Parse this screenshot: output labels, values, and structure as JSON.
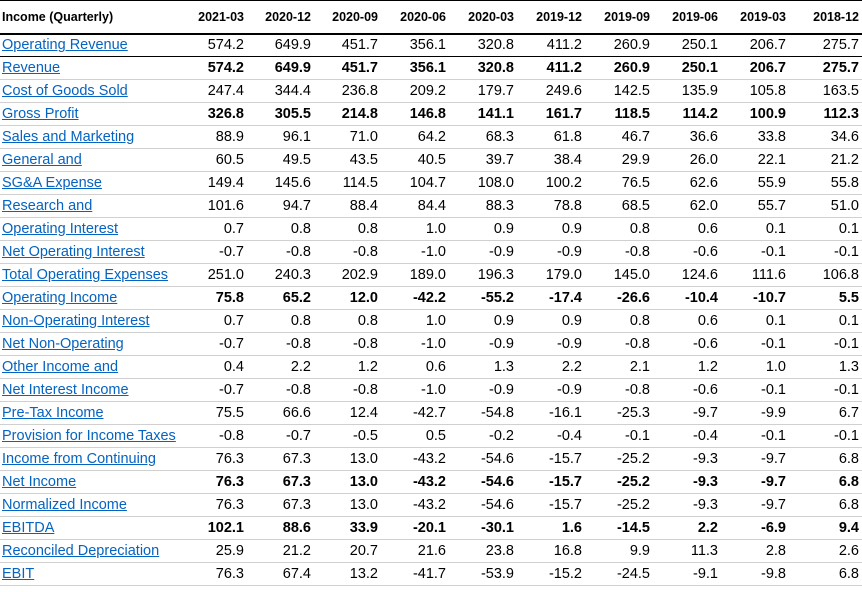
{
  "table": {
    "title": "Income (Quarterly)",
    "periods": [
      "2021-03",
      "2020-12",
      "2020-09",
      "2020-06",
      "2020-03",
      "2019-12",
      "2019-09",
      "2019-06",
      "2019-03",
      "2018-12"
    ],
    "rows": [
      {
        "label": "Operating Revenue",
        "bold": false,
        "values": [
          "574.2",
          "649.9",
          "451.7",
          "356.1",
          "320.8",
          "411.2",
          "260.9",
          "250.1",
          "206.7",
          "275.7"
        ]
      },
      {
        "label": "Revenue",
        "bold": true,
        "values": [
          "574.2",
          "649.9",
          "451.7",
          "356.1",
          "320.8",
          "411.2",
          "260.9",
          "250.1",
          "206.7",
          "275.7"
        ]
      },
      {
        "label": "Cost of Goods Sold",
        "bold": false,
        "values": [
          "247.4",
          "344.4",
          "236.8",
          "209.2",
          "179.7",
          "249.6",
          "142.5",
          "135.9",
          "105.8",
          "163.5"
        ]
      },
      {
        "label": "Gross Profit",
        "bold": true,
        "values": [
          "326.8",
          "305.5",
          "214.8",
          "146.8",
          "141.1",
          "161.7",
          "118.5",
          "114.2",
          "100.9",
          "112.3"
        ]
      },
      {
        "label": "Sales and Marketing",
        "bold": false,
        "values": [
          "88.9",
          "96.1",
          "71.0",
          "64.2",
          "68.3",
          "61.8",
          "46.7",
          "36.6",
          "33.8",
          "34.6"
        ]
      },
      {
        "label": "General and",
        "bold": false,
        "values": [
          "60.5",
          "49.5",
          "43.5",
          "40.5",
          "39.7",
          "38.4",
          "29.9",
          "26.0",
          "22.1",
          "21.2"
        ]
      },
      {
        "label": "SG&A Expense",
        "bold": false,
        "values": [
          "149.4",
          "145.6",
          "114.5",
          "104.7",
          "108.0",
          "100.2",
          "76.5",
          "62.6",
          "55.9",
          "55.8"
        ]
      },
      {
        "label": "Research and",
        "bold": false,
        "values": [
          "101.6",
          "94.7",
          "88.4",
          "84.4",
          "88.3",
          "78.8",
          "68.5",
          "62.0",
          "55.7",
          "51.0"
        ]
      },
      {
        "label": "Operating Interest",
        "bold": false,
        "values": [
          "0.7",
          "0.8",
          "0.8",
          "1.0",
          "0.9",
          "0.9",
          "0.8",
          "0.6",
          "0.1",
          "0.1"
        ]
      },
      {
        "label": "Net Operating Interest",
        "bold": false,
        "values": [
          "-0.7",
          "-0.8",
          "-0.8",
          "-1.0",
          "-0.9",
          "-0.9",
          "-0.8",
          "-0.6",
          "-0.1",
          "-0.1"
        ]
      },
      {
        "label": "Total Operating Expenses",
        "bold": false,
        "values": [
          "251.0",
          "240.3",
          "202.9",
          "189.0",
          "196.3",
          "179.0",
          "145.0",
          "124.6",
          "111.6",
          "106.8"
        ]
      },
      {
        "label": "Operating Income",
        "bold": true,
        "values": [
          "75.8",
          "65.2",
          "12.0",
          "-42.2",
          "-55.2",
          "-17.4",
          "-26.6",
          "-10.4",
          "-10.7",
          "5.5"
        ]
      },
      {
        "label": "Non-Operating Interest",
        "bold": false,
        "values": [
          "0.7",
          "0.8",
          "0.8",
          "1.0",
          "0.9",
          "0.9",
          "0.8",
          "0.6",
          "0.1",
          "0.1"
        ]
      },
      {
        "label": "Net Non-Operating",
        "bold": false,
        "values": [
          "-0.7",
          "-0.8",
          "-0.8",
          "-1.0",
          "-0.9",
          "-0.9",
          "-0.8",
          "-0.6",
          "-0.1",
          "-0.1"
        ]
      },
      {
        "label": "Other Income and",
        "bold": false,
        "values": [
          "0.4",
          "2.2",
          "1.2",
          "0.6",
          "1.3",
          "2.2",
          "2.1",
          "1.2",
          "1.0",
          "1.3"
        ]
      },
      {
        "label": "Net Interest Income",
        "bold": false,
        "values": [
          "-0.7",
          "-0.8",
          "-0.8",
          "-1.0",
          "-0.9",
          "-0.9",
          "-0.8",
          "-0.6",
          "-0.1",
          "-0.1"
        ]
      },
      {
        "label": "Pre-Tax Income",
        "bold": false,
        "values": [
          "75.5",
          "66.6",
          "12.4",
          "-42.7",
          "-54.8",
          "-16.1",
          "-25.3",
          "-9.7",
          "-9.9",
          "6.7"
        ]
      },
      {
        "label": "Provision for Income Taxes",
        "bold": false,
        "values": [
          "-0.8",
          "-0.7",
          "-0.5",
          "0.5",
          "-0.2",
          "-0.4",
          "-0.1",
          "-0.4",
          "-0.1",
          "-0.1"
        ]
      },
      {
        "label": "Income from Continuing",
        "bold": false,
        "values": [
          "76.3",
          "67.3",
          "13.0",
          "-43.2",
          "-54.6",
          "-15.7",
          "-25.2",
          "-9.3",
          "-9.7",
          "6.8"
        ]
      },
      {
        "label": "Net Income",
        "bold": true,
        "values": [
          "76.3",
          "67.3",
          "13.0",
          "-43.2",
          "-54.6",
          "-15.7",
          "-25.2",
          "-9.3",
          "-9.7",
          "6.8"
        ]
      },
      {
        "label": "Normalized Income",
        "bold": false,
        "values": [
          "76.3",
          "67.3",
          "13.0",
          "-43.2",
          "-54.6",
          "-15.7",
          "-25.2",
          "-9.3",
          "-9.7",
          "6.8"
        ]
      },
      {
        "label": "EBITDA",
        "bold": true,
        "values": [
          "102.1",
          "88.6",
          "33.9",
          "-20.1",
          "-30.1",
          "1.6",
          "-14.5",
          "2.2",
          "-6.9",
          "9.4"
        ]
      },
      {
        "label": "Reconciled Depreciation",
        "bold": false,
        "values": [
          "25.9",
          "21.2",
          "20.7",
          "21.6",
          "23.8",
          "16.8",
          "9.9",
          "11.3",
          "2.8",
          "2.6"
        ]
      },
      {
        "label": "EBIT",
        "bold": false,
        "values": [
          "76.3",
          "67.4",
          "13.2",
          "-41.7",
          "-53.9",
          "-15.2",
          "-24.5",
          "-9.1",
          "-9.8",
          "6.8"
        ]
      }
    ]
  },
  "colors": {
    "link": "#0563c1",
    "text": "#000000",
    "rule": "#000000",
    "grid": "#d0d0d0"
  }
}
